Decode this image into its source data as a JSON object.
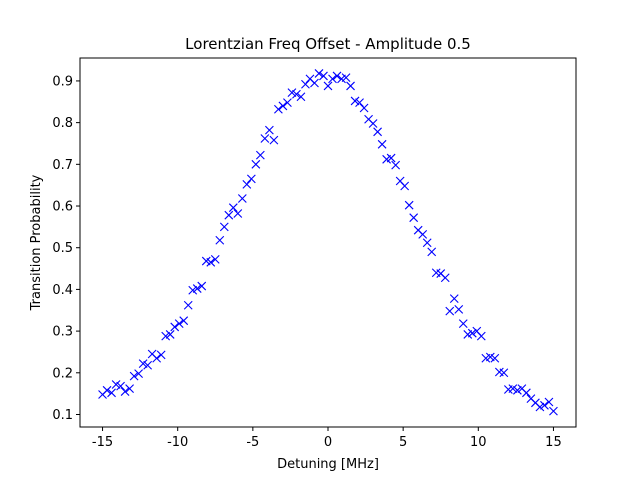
{
  "chart_data": {
    "type": "scatter",
    "title": "Lorentzian Freq Offset - Amplitude 0.5",
    "xlabel": "Detuning [MHz]",
    "ylabel": "Transition Probability",
    "xlim": [
      -16.5,
      16.5
    ],
    "ylim": [
      0.07,
      0.955
    ],
    "xticks": [
      -15,
      -10,
      -5,
      0,
      5,
      10,
      15
    ],
    "yticks": [
      0.1,
      0.2,
      0.3,
      0.4,
      0.5,
      0.6,
      0.7,
      0.8,
      0.9
    ],
    "ytick_labels": [
      "0.1",
      "0.2",
      "0.3",
      "0.4",
      "0.5",
      "0.6",
      "0.7",
      "0.8",
      "0.9"
    ],
    "marker": "x",
    "color": "#0000ff",
    "grid": false,
    "series": [
      {
        "x": [
          -15.0,
          -14.7,
          -14.4,
          -14.1,
          -13.8,
          -13.5,
          -13.2,
          -12.9,
          -12.6,
          -12.3,
          -12.0,
          -11.7,
          -11.4,
          -11.1,
          -10.8,
          -10.5,
          -10.2,
          -9.9,
          -9.6,
          -9.3,
          -9.0,
          -8.7,
          -8.4,
          -8.1,
          -7.8,
          -7.5,
          -7.2,
          -6.9,
          -6.6,
          -6.3,
          -6.0,
          -5.7,
          -5.4,
          -5.1,
          -4.8,
          -4.5,
          -4.2,
          -3.9,
          -3.6,
          -3.3,
          -3.0,
          -2.7,
          -2.4,
          -2.1,
          -1.8,
          -1.5,
          -1.2,
          -0.9,
          -0.6,
          -0.3,
          0.0,
          0.3,
          0.6,
          0.9,
          1.2,
          1.5,
          1.8,
          2.1,
          2.4,
          2.7,
          3.0,
          3.3,
          3.6,
          3.9,
          4.2,
          4.5,
          4.8,
          5.1,
          5.4,
          5.7,
          6.0,
          6.3,
          6.6,
          6.9,
          7.2,
          7.5,
          7.8,
          8.1,
          8.4,
          8.7,
          9.0,
          9.3,
          9.6,
          9.9,
          10.2,
          10.5,
          10.8,
          11.1,
          11.4,
          11.7,
          12.0,
          12.3,
          12.6,
          12.9,
          13.2,
          13.5,
          13.8,
          14.1,
          14.4,
          14.7,
          15.0
        ],
        "y": [
          0.148,
          0.158,
          0.152,
          0.172,
          0.168,
          0.155,
          0.162,
          0.192,
          0.198,
          0.222,
          0.218,
          0.245,
          0.235,
          0.243,
          0.288,
          0.292,
          0.31,
          0.318,
          0.325,
          0.362,
          0.398,
          0.402,
          0.408,
          0.468,
          0.465,
          0.472,
          0.518,
          0.55,
          0.578,
          0.596,
          0.582,
          0.618,
          0.652,
          0.665,
          0.7,
          0.722,
          0.762,
          0.782,
          0.758,
          0.832,
          0.84,
          0.848,
          0.872,
          0.868,
          0.862,
          0.892,
          0.905,
          0.895,
          0.918,
          0.912,
          0.888,
          0.905,
          0.912,
          0.905,
          0.908,
          0.888,
          0.852,
          0.848,
          0.835,
          0.808,
          0.798,
          0.778,
          0.748,
          0.712,
          0.715,
          0.698,
          0.66,
          0.648,
          0.602,
          0.572,
          0.542,
          0.532,
          0.512,
          0.49,
          0.44,
          0.438,
          0.428,
          0.348,
          0.378,
          0.352,
          0.318,
          0.292,
          0.295,
          0.3,
          0.288,
          0.235,
          0.238,
          0.235,
          0.202,
          0.2,
          0.16,
          0.162,
          0.158,
          0.162,
          0.152,
          0.138,
          0.128,
          0.118,
          0.122,
          0.13,
          0.108
        ]
      }
    ]
  }
}
